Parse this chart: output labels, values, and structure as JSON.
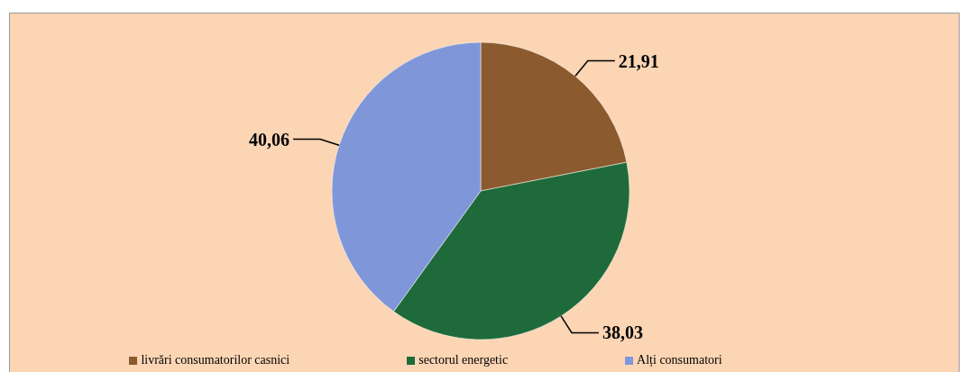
{
  "chart_data": {
    "type": "pie",
    "categories": [
      "livrări consumatorilor casnici",
      "sectorul energetic",
      "Alți consumatori"
    ],
    "values": [
      21.91,
      38.03,
      40.06
    ],
    "colors": [
      "#8b5a2e",
      "#1f6a3a",
      "#7f97d8"
    ],
    "value_labels": [
      "21,91",
      "38,03",
      "40,06"
    ],
    "legend": "bottom"
  }
}
